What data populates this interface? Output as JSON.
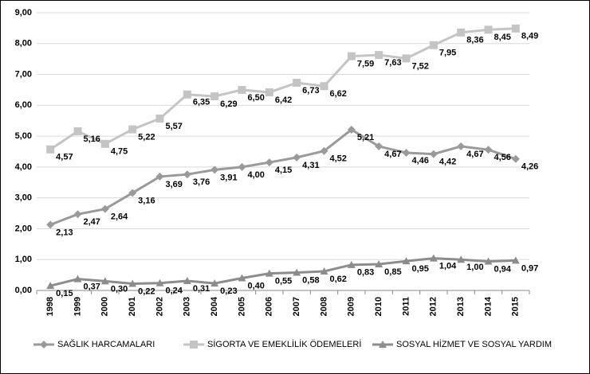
{
  "chart_data": {
    "type": "line",
    "categories": [
      "1998",
      "1999",
      "2000",
      "2001",
      "2002",
      "2003",
      "2004",
      "2005",
      "2006",
      "2007",
      "2008",
      "2009",
      "2010",
      "2011",
      "2012",
      "2013",
      "2014",
      "2015"
    ],
    "series": [
      {
        "name": "SAĞLIK HARCAMALARI",
        "color": "#9a9a9a",
        "marker": "diamond",
        "values": [
          2.13,
          2.47,
          2.64,
          3.16,
          3.69,
          3.76,
          3.91,
          4.0,
          4.15,
          4.31,
          4.52,
          5.21,
          4.67,
          4.46,
          4.42,
          4.67,
          4.56,
          4.26
        ],
        "value_labels": [
          "2,13",
          "2,47",
          "2,64",
          "3,16",
          "3,69",
          "3,76",
          "3,91",
          "4,00",
          "4,15",
          "4,31",
          "4,52",
          "5,21",
          "4,67",
          "4,46",
          "4,42",
          "4,67",
          "4,56",
          "4,26"
        ]
      },
      {
        "name": "SİGORTA VE EMEKLİLİK ÖDEMELERİ",
        "color": "#c4c4c4",
        "marker": "square",
        "values": [
          4.57,
          5.16,
          4.75,
          5.22,
          5.57,
          6.35,
          6.29,
          6.5,
          6.42,
          6.73,
          6.62,
          7.59,
          7.63,
          7.52,
          7.95,
          8.36,
          8.45,
          8.49
        ],
        "value_labels": [
          "4,57",
          "5,16",
          "4,75",
          "5,22",
          "5,57",
          "6,35",
          "6,29",
          "6,50",
          "6,42",
          "6,73",
          "6,62",
          "7,59",
          "7,63",
          "7,52",
          "7,95",
          "8,36",
          "8,45",
          "8,49"
        ]
      },
      {
        "name": "SOSYAL HİZMET VE SOSYAL YARDIM",
        "color": "#8c8c8c",
        "marker": "triangle",
        "values": [
          0.15,
          0.37,
          0.3,
          0.22,
          0.24,
          0.31,
          0.23,
          0.4,
          0.55,
          0.58,
          0.62,
          0.83,
          0.85,
          0.95,
          1.04,
          1.0,
          0.94,
          0.97
        ],
        "value_labels": [
          "0,15",
          "0,37",
          "0,30",
          "0,22",
          "0,24",
          "0,31",
          "0,23",
          "0,40",
          "0,55",
          "0,58",
          "0,62",
          "0,83",
          "0,85",
          "0,95",
          "1,04",
          "1,00",
          "0,94",
          "0,97"
        ]
      }
    ],
    "ylim": [
      0,
      9
    ],
    "yticks": [
      {
        "value": 0,
        "label": "0,00"
      },
      {
        "value": 1,
        "label": "1,00"
      },
      {
        "value": 2,
        "label": "2,00"
      },
      {
        "value": 3,
        "label": "3,00"
      },
      {
        "value": 4,
        "label": "4,00"
      },
      {
        "value": 5,
        "label": "5,00"
      },
      {
        "value": 6,
        "label": "6,00"
      },
      {
        "value": 7,
        "label": "7,00"
      },
      {
        "value": 8,
        "label": "8,00"
      },
      {
        "value": 9,
        "label": "9,00"
      }
    ],
    "grid": true,
    "legend": "bottom"
  }
}
